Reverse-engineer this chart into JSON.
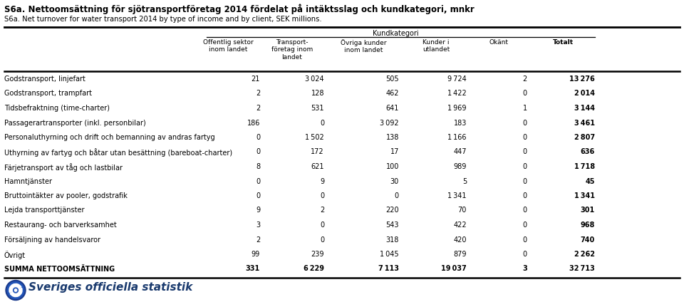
{
  "title1": "S6a. Nettoomsättning för sjötransportföretag 2014 fördelat på intäktsslag och kundkategori, mnkr",
  "title2": "S6a. Net turnover for water transport 2014 by type of income and by client, SEK millions.",
  "kundkategori_label": "Kundkategori",
  "col_headers": [
    "Offentlig sektor\ninom landet",
    "Transport-\nföretag inom\nlandet",
    "Övriga kunder\ninom landet",
    "Kunder i\nutlandet",
    "Okänt",
    "Totalt"
  ],
  "row_labels": [
    "Godstransport, linjefart",
    "Godstransport, trampfart",
    "Tidsbefraktning (time-charter)",
    "Passagerartransporter (inkl. personbilar)",
    "Personaluthyrning och drift och bemanning av andras fartyg",
    "Uthyrning av fartyg och båtar utan besättning (bareboat-charter)",
    "Färjetransport av tåg och lastbilar",
    "Hamntjänster",
    "Bruttointäkter av pooler, godstrafik",
    "Lejda transporttjänster",
    "Restaurang- och barverksamhet",
    "Försäljning av handelsvaror",
    "Övrigt",
    "SUMMA NETTOOMSÄTTNING"
  ],
  "data": [
    [
      21,
      3024,
      505,
      9724,
      2,
      13276
    ],
    [
      2,
      128,
      462,
      1422,
      0,
      2014
    ],
    [
      2,
      531,
      641,
      1969,
      1,
      3144
    ],
    [
      186,
      0,
      3092,
      183,
      0,
      3461
    ],
    [
      0,
      1502,
      138,
      1166,
      0,
      2807
    ],
    [
      0,
      172,
      17,
      447,
      0,
      636
    ],
    [
      8,
      621,
      100,
      989,
      0,
      1718
    ],
    [
      0,
      9,
      30,
      5,
      0,
      45
    ],
    [
      0,
      0,
      0,
      1341,
      0,
      1341
    ],
    [
      9,
      2,
      220,
      70,
      0,
      301
    ],
    [
      3,
      0,
      543,
      422,
      0,
      968
    ],
    [
      2,
      0,
      318,
      420,
      0,
      740
    ],
    [
      99,
      239,
      1045,
      879,
      0,
      2262
    ],
    [
      331,
      6229,
      7113,
      19037,
      3,
      32713
    ]
  ],
  "bold_rows": [
    13
  ],
  "bg_color": "#ffffff",
  "text_color": "#000000",
  "footer_text": "Sveriges officiella statistik",
  "footer_color": "#1a3a6e"
}
